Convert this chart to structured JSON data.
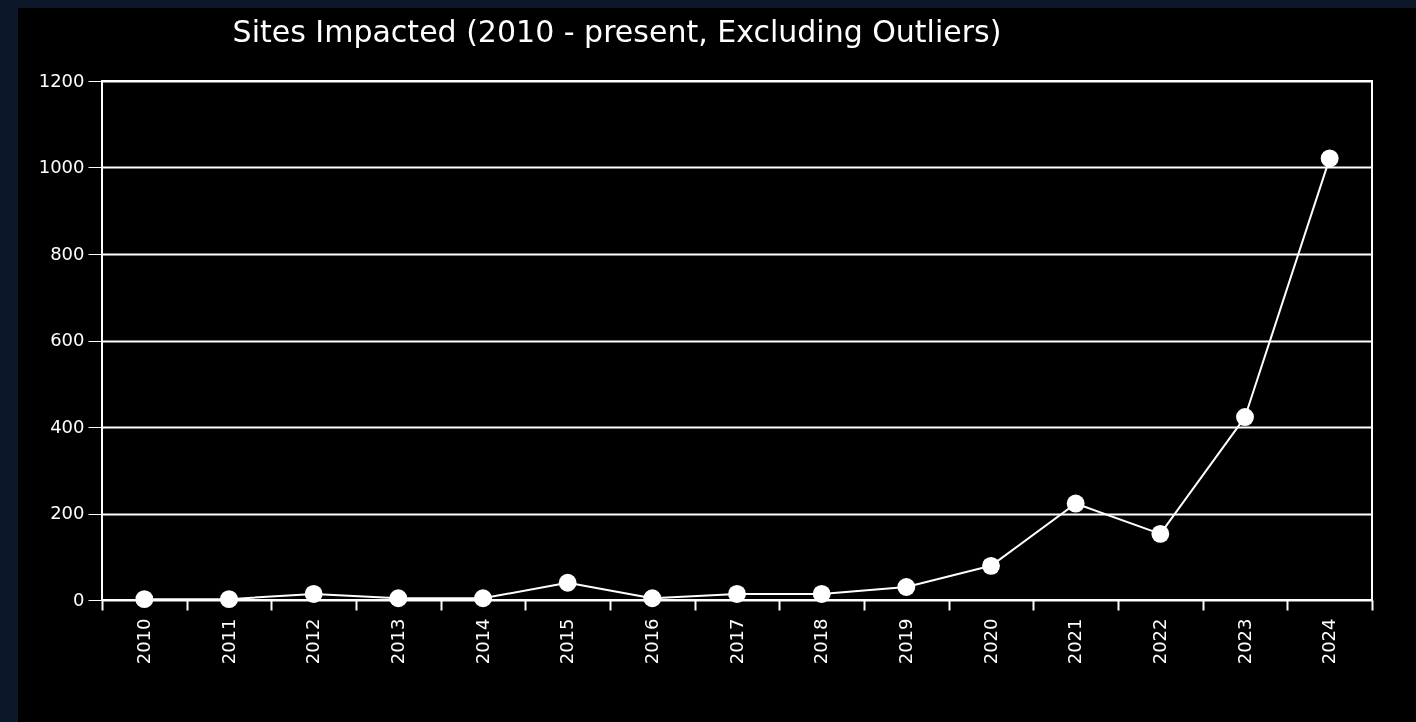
{
  "chart_data": {
    "type": "line",
    "title": "Sites Impacted (2010 - present, Excluding Outliers)",
    "categories": [
      "2010",
      "2011",
      "2012",
      "2013",
      "2014",
      "2015",
      "2016",
      "2017",
      "2018",
      "2019",
      "2020",
      "2021",
      "2022",
      "2023",
      "2024"
    ],
    "series": [
      {
        "color": "#ffffff",
        "values": [
          2,
          2,
          14,
          4,
          4,
          40,
          4,
          14,
          14,
          30,
          79,
          223,
          153,
          423,
          1021
        ]
      }
    ],
    "ylim": [
      0,
      1200
    ],
    "yticks": [
      0,
      200,
      400,
      600,
      800,
      1000,
      1200
    ],
    "grid": "y",
    "marker": "circle",
    "line_style": "solid"
  }
}
